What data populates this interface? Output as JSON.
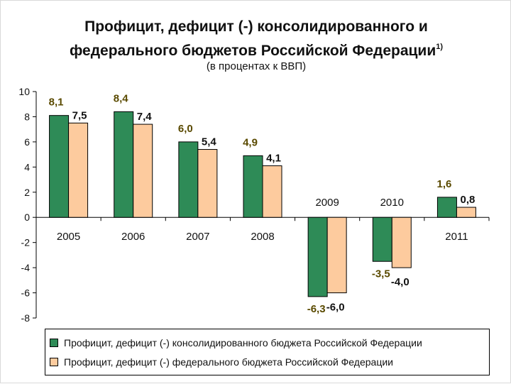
{
  "title_line1": "Профицит, дефицит (-) консолидированного и",
  "title_line2": "федерального бюджетов Российской Федерации",
  "title_footnote": "1)",
  "subtitle": "(в процентах к ВВП)",
  "colors": {
    "consolidated": "#2e8b57",
    "federal": "#fdcb9e",
    "edge": "#000000"
  },
  "chart_data": {
    "type": "bar",
    "categories": [
      "2005",
      "2006",
      "2007",
      "2008",
      "2009",
      "2010",
      "2011"
    ],
    "series": [
      {
        "name": "Профицит, дефицит (-) консолидированного бюджета Российской Федерации",
        "values": [
          8.1,
          8.4,
          6.0,
          4.9,
          -6.3,
          -3.5,
          1.6
        ],
        "labels": [
          "8,1",
          "8,4",
          "6,0",
          "4,9",
          "-6,3",
          "-3,5",
          "1,6"
        ]
      },
      {
        "name": "Профицит, дефицит (-) федерального бюджета Российской Федерации",
        "values": [
          7.5,
          7.4,
          5.4,
          4.1,
          -6.0,
          -4.0,
          0.8
        ],
        "labels": [
          "7,5",
          "7,4",
          "5,4",
          "4,1",
          "-6,0",
          "-4,0",
          "0,8"
        ]
      }
    ],
    "yticks": [
      10,
      8,
      6,
      4,
      2,
      0,
      -2,
      -4,
      -6,
      -8
    ],
    "ylim": [
      -8,
      10
    ],
    "grid": false,
    "legend_position": "bottom"
  }
}
